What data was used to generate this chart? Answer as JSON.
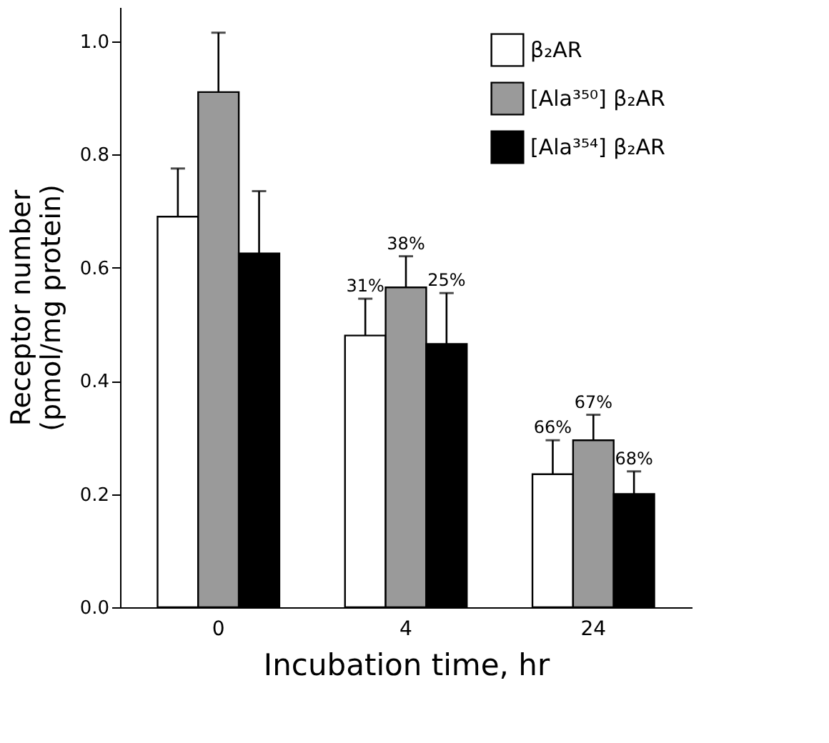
{
  "chart_data": {
    "type": "bar",
    "xlabel": "Incubation time, hr",
    "ylabel": "Receptor number\n(pmol/mg protein)",
    "categories": [
      "0",
      "4",
      "24"
    ],
    "series": [
      {
        "name": "β₂AR",
        "color": "#ffffff",
        "values": [
          0.69,
          0.48,
          0.235
        ],
        "errors": [
          [
            0.69,
            0.775
          ],
          [
            0.48,
            0.545
          ],
          [
            0.235,
            0.295
          ]
        ]
      },
      {
        "name": "[Ala³⁵⁰] β₂AR",
        "color": "#9a9a9a",
        "values": [
          0.91,
          0.565,
          0.295
        ],
        "errors": [
          [
            0.91,
            1.015
          ],
          [
            0.565,
            0.62
          ],
          [
            0.295,
            0.34
          ]
        ]
      },
      {
        "name": "[Ala³⁵⁴] β₂AR",
        "color": "#000000",
        "values": [
          0.625,
          0.465,
          0.2
        ],
        "errors": [
          [
            0.625,
            0.735
          ],
          [
            0.465,
            0.555
          ],
          [
            0.2,
            0.24
          ]
        ]
      }
    ],
    "annotations": [
      "31%",
      "38%",
      "25%",
      "66%",
      "67%",
      "68%"
    ],
    "ylim": [
      0,
      1.06
    ],
    "yticks": [
      {
        "value": 0,
        "label": "0.0"
      },
      0.2,
      0.4,
      0.6,
      0.8,
      {
        "value": 1,
        "label": "1.0"
      }
    ],
    "grid": false,
    "legend": "top right"
  }
}
